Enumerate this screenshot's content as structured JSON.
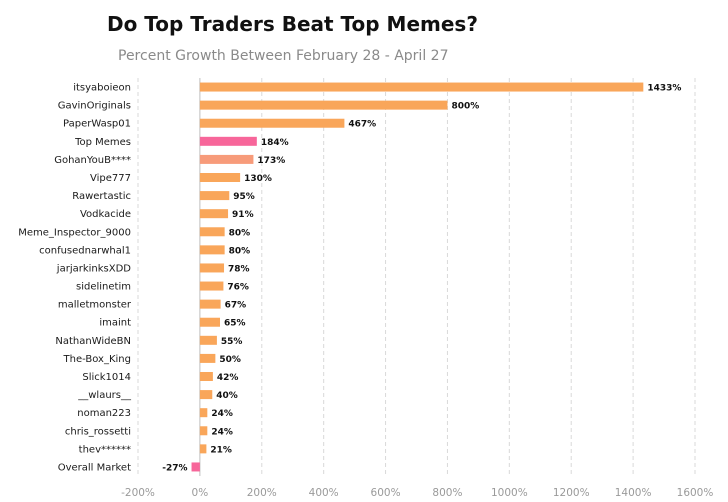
{
  "chart_data": {
    "type": "bar",
    "orientation": "horizontal",
    "title": "Do Top Traders Beat Top Memes?",
    "subtitle": "Percent Growth Between February 28 - April 27",
    "categories": [
      "itsyaboieon",
      "GavinOriginals",
      "PaperWasp01",
      "Top  Memes",
      "GohanYouB****",
      "Vipe777",
      "Rawertastic",
      "Vodkacide",
      "Meme_Inspector_9000",
      "confusednarwhal1",
      "jarjarkinksXDD",
      "sidelinetim",
      "malletmonster",
      "imaint",
      "NathanWideBN",
      "The-Box_King",
      "Slick1014",
      "__wlaurs__",
      "noman223",
      "chris_rossetti",
      "thev******",
      "Overall Market"
    ],
    "values": [
      1433,
      800,
      467,
      184,
      173,
      130,
      95,
      91,
      80,
      80,
      78,
      76,
      67,
      65,
      55,
      50,
      42,
      40,
      24,
      24,
      21,
      -27
    ],
    "value_labels": [
      "1433%",
      "800%",
      "467%",
      "184%",
      "173%",
      "130%",
      "95%",
      "91%",
      "80%",
      "80%",
      "78%",
      "76%",
      "67%",
      "65%",
      "55%",
      "50%",
      "42%",
      "40%",
      "24%",
      "24%",
      "21%",
      "-27%"
    ],
    "xlim": [
      -200,
      1600
    ],
    "xticks": [
      -200,
      0,
      200,
      400,
      600,
      800,
      1000,
      1200,
      1400,
      1600
    ],
    "xtick_labels": [
      "-200%",
      "0%",
      "200%",
      "400%",
      "600%",
      "800%",
      "1000%",
      "1200%",
      "1400%",
      "1600%"
    ],
    "grid": "vertical dashed",
    "colors": {
      "default": "#F9A65A",
      "top_memes": "#F7669A",
      "gohan": "#F79B7A",
      "overall_market": "#F7669A",
      "grid": "#d9d9d9",
      "axis": "#bfbfbf"
    },
    "highlight": {
      "Top  Memes": "top_memes",
      "GohanYouB****": "gohan",
      "Overall Market": "overall_market"
    }
  }
}
